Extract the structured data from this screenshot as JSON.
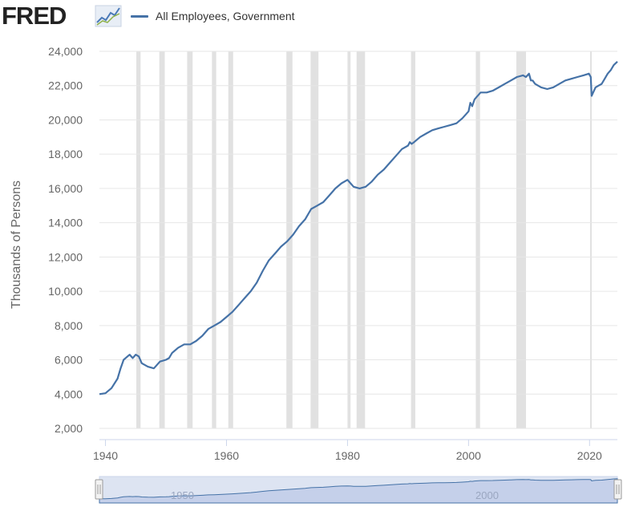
{
  "header": {
    "logo_text": "FRED",
    "legend_label": "All Employees, Government"
  },
  "colors": {
    "series": "#4572a7",
    "recession": "#e1e1e1",
    "grid": "#e6e6e6",
    "navigator_fill": "#c5d0ea",
    "navigator_handle": "#f2f2f2"
  },
  "chart_data": {
    "type": "line",
    "title": "",
    "xlabel": "",
    "ylabel": "Thousands of Persons",
    "xlim": [
      1939,
      2024.6
    ],
    "ylim": [
      2000,
      24000
    ],
    "x_ticks": [
      1940,
      1960,
      1980,
      2000,
      2020
    ],
    "y_ticks": [
      2000,
      4000,
      6000,
      8000,
      10000,
      12000,
      14000,
      16000,
      18000,
      20000,
      22000,
      24000
    ],
    "y_tick_labels": [
      "2,000",
      "4,000",
      "6,000",
      "8,000",
      "10,000",
      "12,000",
      "14,000",
      "16,000",
      "18,000",
      "20,000",
      "22,000",
      "24,000"
    ],
    "x_tick_labels": [
      "1940",
      "1960",
      "1980",
      "2000",
      "2020"
    ],
    "grid": true,
    "legend": "top-left",
    "recessions": [
      [
        1945.1,
        1945.8
      ],
      [
        1948.9,
        1949.8
      ],
      [
        1953.5,
        1954.4
      ],
      [
        1957.6,
        1958.3
      ],
      [
        1960.3,
        1961.1
      ],
      [
        1969.9,
        1970.9
      ],
      [
        1973.9,
        1975.2
      ],
      [
        1980.0,
        1980.5
      ],
      [
        1981.5,
        1982.9
      ],
      [
        1990.5,
        1991.2
      ],
      [
        2001.2,
        2001.9
      ],
      [
        2007.9,
        2009.5
      ],
      [
        2020.1,
        2020.3
      ]
    ],
    "series": [
      {
        "name": "All Employees, Government",
        "x": [
          1939.0,
          1940.0,
          1941.0,
          1942.0,
          1942.5,
          1943.0,
          1944.0,
          1944.5,
          1945.0,
          1945.5,
          1946.0,
          1947.0,
          1948.0,
          1949.0,
          1950.0,
          1950.5,
          1951.0,
          1952.0,
          1953.0,
          1954.0,
          1955.0,
          1956.0,
          1957.0,
          1958.0,
          1959.0,
          1960.0,
          1961.0,
          1962.0,
          1963.0,
          1964.0,
          1965.0,
          1966.0,
          1967.0,
          1968.0,
          1969.0,
          1970.0,
          1971.0,
          1972.0,
          1973.0,
          1974.0,
          1975.0,
          1976.0,
          1977.0,
          1978.0,
          1979.0,
          1980.0,
          1980.5,
          1981.0,
          1982.0,
          1983.0,
          1984.0,
          1985.0,
          1986.0,
          1987.0,
          1988.0,
          1989.0,
          1990.0,
          1990.3,
          1990.6,
          1991.0,
          1992.0,
          1993.0,
          1994.0,
          1995.0,
          1996.0,
          1997.0,
          1998.0,
          1999.0,
          2000.0,
          2000.3,
          2000.6,
          2001.0,
          2002.0,
          2003.0,
          2004.0,
          2005.0,
          2006.0,
          2007.0,
          2008.0,
          2009.0,
          2009.5,
          2010.0,
          2010.3,
          2010.6,
          2011.0,
          2012.0,
          2013.0,
          2014.0,
          2015.0,
          2016.0,
          2017.0,
          2018.0,
          2019.0,
          2019.9,
          2020.2,
          2020.35,
          2020.6,
          2021.0,
          2021.5,
          2022.0,
          2022.5,
          2023.0,
          2023.5,
          2024.0,
          2024.6
        ],
        "values": [
          4000,
          4050,
          4350,
          4900,
          5500,
          6000,
          6300,
          6100,
          6300,
          6200,
          5800,
          5600,
          5500,
          5900,
          6000,
          6100,
          6400,
          6700,
          6900,
          6900,
          7100,
          7400,
          7800,
          8000,
          8200,
          8500,
          8800,
          9200,
          9600,
          10000,
          10500,
          11200,
          11800,
          12200,
          12600,
          12900,
          13300,
          13800,
          14200,
          14800,
          15000,
          15200,
          15600,
          16000,
          16300,
          16500,
          16300,
          16100,
          16000,
          16100,
          16400,
          16800,
          17100,
          17500,
          17900,
          18300,
          18500,
          18700,
          18600,
          18700,
          19000,
          19200,
          19400,
          19500,
          19600,
          19700,
          19800,
          20100,
          20500,
          21000,
          20800,
          21200,
          21600,
          21600,
          21700,
          21900,
          22100,
          22300,
          22500,
          22600,
          22500,
          22700,
          22300,
          22300,
          22100,
          21900,
          21800,
          21900,
          22100,
          22300,
          22400,
          22500,
          22600,
          22700,
          22500,
          21400,
          21600,
          21900,
          22000,
          22100,
          22400,
          22700,
          22900,
          23200,
          23400
        ]
      }
    ]
  },
  "navigator": {
    "labels": [
      "1950",
      "2000"
    ],
    "range": [
      1939,
      2024.6
    ]
  }
}
